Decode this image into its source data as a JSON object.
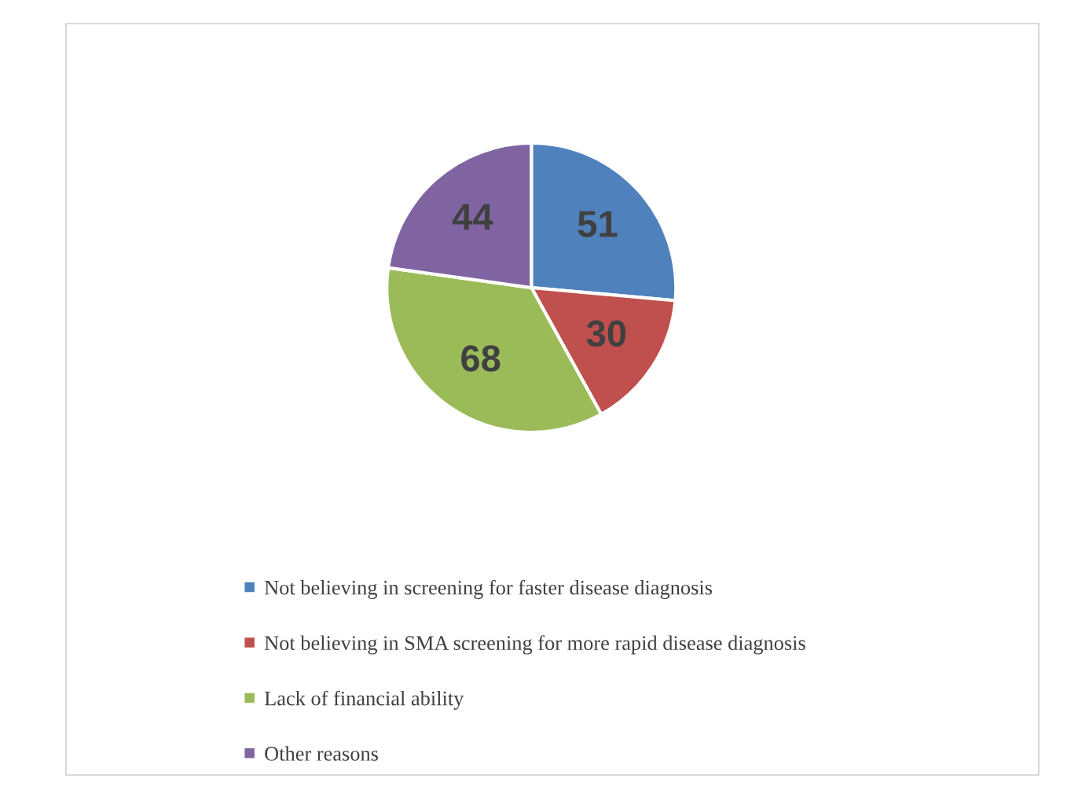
{
  "chart_data": {
    "type": "pie",
    "categories": [
      "Not believing in screening for faster disease diagnosis",
      "Not believing in SMA screening for more rapid disease diagnosis",
      "Lack of financial ability",
      "Other reasons"
    ],
    "values": [
      51,
      30,
      68,
      44
    ],
    "colors": [
      "#4f81bd",
      "#c0504d",
      "#9bbb59",
      "#8064a2"
    ],
    "data_labels": true,
    "legend": "bottom"
  }
}
